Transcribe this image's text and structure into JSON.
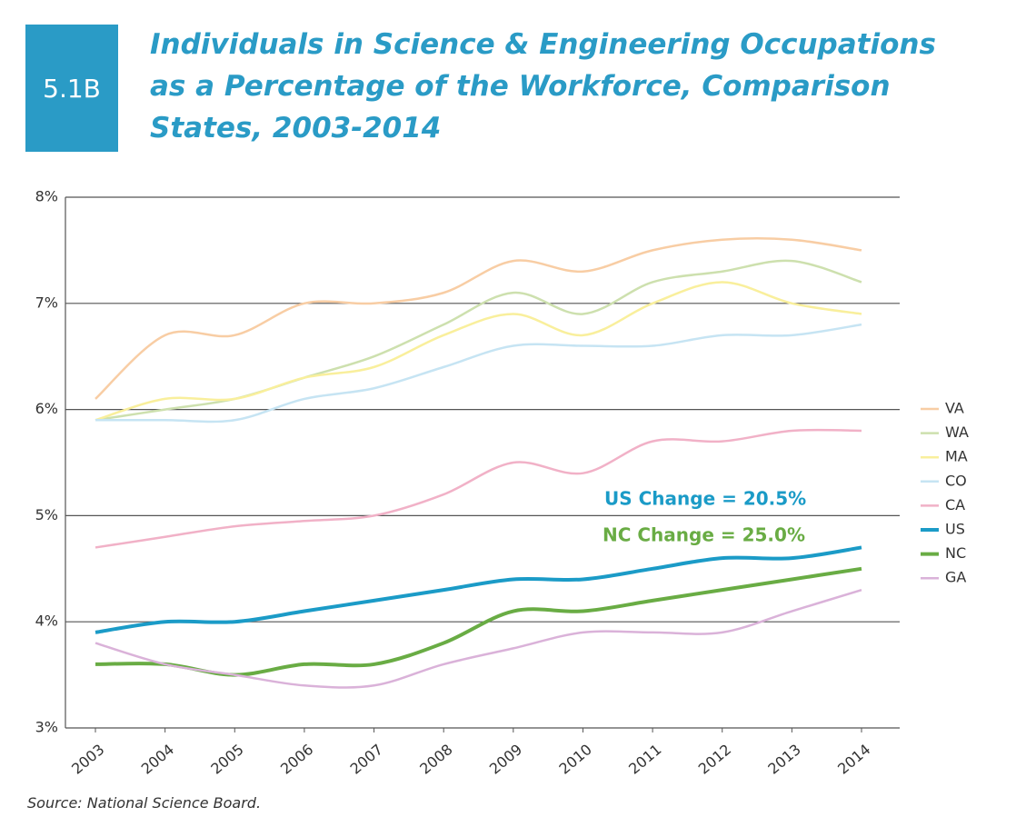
{
  "chart_data": {
    "type": "line",
    "badge": "5.1B",
    "title": "Individuals in Science & Engineering Occupations as a Percentage of the Workforce, Comparison States, 2003-2014",
    "source": "Source: National Science Board.",
    "categories": [
      "2003",
      "2004",
      "2005",
      "2006",
      "2007",
      "2008",
      "2009",
      "2010",
      "2011",
      "2012",
      "2013",
      "2014"
    ],
    "ylim": [
      3,
      8
    ],
    "yticks": [
      {
        "value": 3,
        "label": "3%"
      },
      {
        "value": 4,
        "label": "4%"
      },
      {
        "value": 5,
        "label": "5%"
      },
      {
        "value": 6,
        "label": "6%"
      },
      {
        "value": 7,
        "label": "7%"
      },
      {
        "value": 8,
        "label": "8%"
      }
    ],
    "grid": true,
    "legend": "right",
    "series": [
      {
        "name": "VA",
        "color": "#f8cda4",
        "values": [
          6.1,
          6.7,
          6.7,
          7.0,
          7.0,
          7.1,
          7.4,
          7.3,
          7.5,
          7.6,
          7.6,
          7.5
        ]
      },
      {
        "name": "WA",
        "color": "#cde0ae",
        "values": [
          5.9,
          6.0,
          6.1,
          6.3,
          6.5,
          6.8,
          7.1,
          6.9,
          7.2,
          7.3,
          7.4,
          7.2
        ]
      },
      {
        "name": "MA",
        "color": "#f9ef9c",
        "values": [
          5.9,
          6.1,
          6.1,
          6.3,
          6.4,
          6.7,
          6.9,
          6.7,
          7.0,
          7.2,
          7.0,
          6.9
        ]
      },
      {
        "name": "CO",
        "color": "#c6e4f3",
        "values": [
          5.9,
          5.9,
          5.9,
          6.1,
          6.2,
          6.4,
          6.6,
          6.6,
          6.6,
          6.7,
          6.7,
          6.8
        ]
      },
      {
        "name": "CA",
        "color": "#f1b1c7",
        "values": [
          4.7,
          4.8,
          4.9,
          4.95,
          5.0,
          5.2,
          5.5,
          5.4,
          5.7,
          5.7,
          5.8,
          5.8
        ]
      },
      {
        "name": "US",
        "color": "#1b9bc7",
        "values": [
          3.9,
          4.0,
          4.0,
          4.1,
          4.2,
          4.3,
          4.4,
          4.4,
          4.5,
          4.6,
          4.6,
          4.7
        ]
      },
      {
        "name": "NC",
        "color": "#69ac44",
        "values": [
          3.6,
          3.6,
          3.5,
          3.6,
          3.6,
          3.8,
          4.1,
          4.1,
          4.2,
          4.3,
          4.4,
          4.5
        ]
      },
      {
        "name": "GA",
        "color": "#dab2d9",
        "values": [
          3.8,
          3.6,
          3.5,
          3.4,
          3.4,
          3.6,
          3.75,
          3.9,
          3.9,
          3.9,
          4.1,
          4.3
        ]
      }
    ],
    "annotations": [
      {
        "text": "US Change = 20.5%",
        "color": "#1b9bc7"
      },
      {
        "text": "NC Change = 25.0%",
        "color": "#69ac44"
      }
    ]
  }
}
